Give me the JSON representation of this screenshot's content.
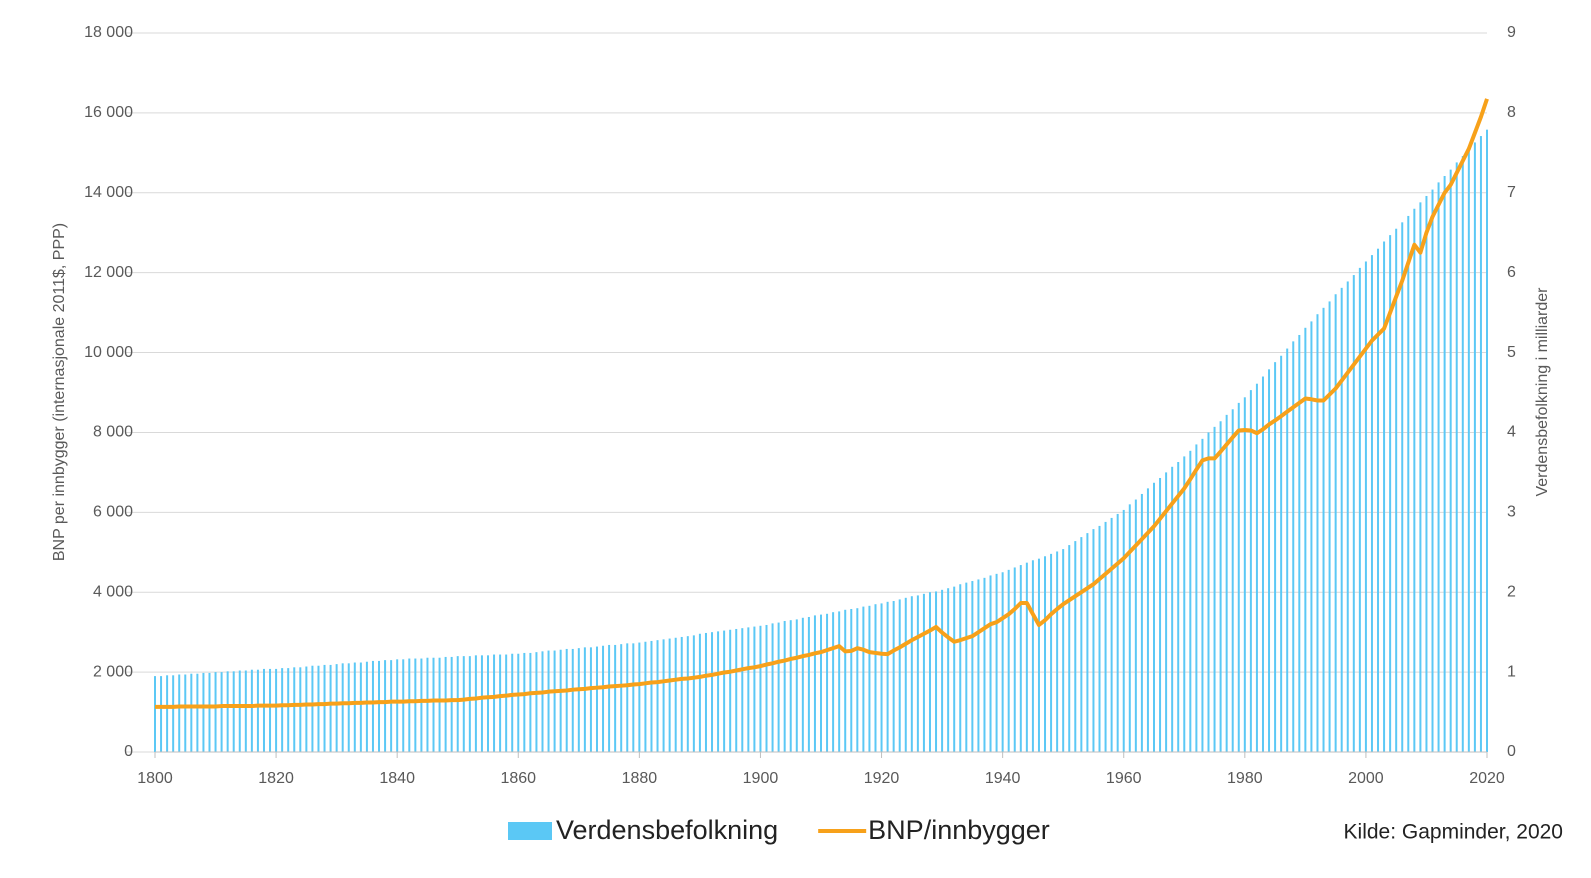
{
  "chart_data": {
    "type": "bar-line",
    "y_label": "BNP per innbygger (internasjonale 2011$, PPP)",
    "y2_label": "Verdensbefolkning i milliarder",
    "source": "Kilde: Gapminder, 2020",
    "xlim": [
      1800,
      2020
    ],
    "xticks": [
      1800,
      1820,
      1840,
      1860,
      1880,
      1900,
      1920,
      1940,
      1960,
      1980,
      2000,
      2020
    ],
    "ylim": [
      0,
      18000
    ],
    "yticks": [
      0,
      {
        "value": 2000,
        "label": "2 000"
      },
      {
        "value": 4000,
        "label": "4 000"
      },
      {
        "value": 6000,
        "label": "6 000"
      },
      {
        "value": 8000,
        "label": "8 000"
      },
      {
        "value": 10000,
        "label": "10 000"
      },
      {
        "value": 12000,
        "label": "12 000"
      },
      {
        "value": 14000,
        "label": "14 000"
      },
      {
        "value": 16000,
        "label": "16 000"
      },
      {
        "value": 18000,
        "label": "18 000"
      }
    ],
    "y2lim": [
      0,
      9
    ],
    "y2ticks": [
      0,
      1,
      2,
      3,
      4,
      5,
      6,
      7,
      8,
      9
    ],
    "grid": true,
    "x": [
      1800,
      1801,
      1802,
      1803,
      1804,
      1805,
      1806,
      1807,
      1808,
      1809,
      1810,
      1811,
      1812,
      1813,
      1814,
      1815,
      1816,
      1817,
      1818,
      1819,
      1820,
      1821,
      1822,
      1823,
      1824,
      1825,
      1826,
      1827,
      1828,
      1829,
      1830,
      1831,
      1832,
      1833,
      1834,
      1835,
      1836,
      1837,
      1838,
      1839,
      1840,
      1841,
      1842,
      1843,
      1844,
      1845,
      1846,
      1847,
      1848,
      1849,
      1850,
      1851,
      1852,
      1853,
      1854,
      1855,
      1856,
      1857,
      1858,
      1859,
      1860,
      1861,
      1862,
      1863,
      1864,
      1865,
      1866,
      1867,
      1868,
      1869,
      1870,
      1871,
      1872,
      1873,
      1874,
      1875,
      1876,
      1877,
      1878,
      1879,
      1880,
      1881,
      1882,
      1883,
      1884,
      1885,
      1886,
      1887,
      1888,
      1889,
      1890,
      1891,
      1892,
      1893,
      1894,
      1895,
      1896,
      1897,
      1898,
      1899,
      1900,
      1901,
      1902,
      1903,
      1904,
      1905,
      1906,
      1907,
      1908,
      1909,
      1910,
      1911,
      1912,
      1913,
      1914,
      1915,
      1916,
      1917,
      1918,
      1919,
      1920,
      1921,
      1922,
      1923,
      1924,
      1925,
      1926,
      1927,
      1928,
      1929,
      1930,
      1931,
      1932,
      1933,
      1934,
      1935,
      1936,
      1937,
      1938,
      1939,
      1940,
      1941,
      1942,
      1943,
      1944,
      1945,
      1946,
      1947,
      1948,
      1949,
      1950,
      1951,
      1952,
      1953,
      1954,
      1955,
      1956,
      1957,
      1958,
      1959,
      1960,
      1961,
      1962,
      1963,
      1964,
      1965,
      1966,
      1967,
      1968,
      1969,
      1970,
      1971,
      1972,
      1973,
      1974,
      1975,
      1976,
      1977,
      1978,
      1979,
      1980,
      1981,
      1982,
      1983,
      1984,
      1985,
      1986,
      1987,
      1988,
      1989,
      1990,
      1991,
      1992,
      1993,
      1994,
      1995,
      1996,
      1997,
      1998,
      1999,
      2000,
      2001,
      2002,
      2003,
      2004,
      2005,
      2006,
      2007,
      2008,
      2009,
      2010,
      2011,
      2012,
      2013,
      2014,
      2015,
      2016,
      2017,
      2018,
      2019,
      2020
    ],
    "series": [
      {
        "name": "Verdensbefolkning",
        "type": "bar",
        "axis": "y2",
        "color": "#5bc8f5",
        "values": [
          0.95,
          0.95,
          0.96,
          0.96,
          0.97,
          0.97,
          0.98,
          0.98,
          0.99,
          0.99,
          1.0,
          1.0,
          1.01,
          1.01,
          1.02,
          1.02,
          1.03,
          1.03,
          1.04,
          1.04,
          1.04,
          1.05,
          1.05,
          1.06,
          1.06,
          1.07,
          1.08,
          1.08,
          1.09,
          1.09,
          1.1,
          1.11,
          1.11,
          1.12,
          1.12,
          1.13,
          1.14,
          1.14,
          1.15,
          1.15,
          1.16,
          1.16,
          1.17,
          1.17,
          1.17,
          1.18,
          1.18,
          1.18,
          1.19,
          1.19,
          1.2,
          1.2,
          1.2,
          1.21,
          1.21,
          1.21,
          1.22,
          1.22,
          1.22,
          1.23,
          1.23,
          1.24,
          1.24,
          1.25,
          1.26,
          1.27,
          1.27,
          1.28,
          1.29,
          1.29,
          1.3,
          1.31,
          1.31,
          1.32,
          1.33,
          1.34,
          1.34,
          1.35,
          1.36,
          1.36,
          1.37,
          1.38,
          1.39,
          1.4,
          1.41,
          1.42,
          1.43,
          1.44,
          1.45,
          1.46,
          1.48,
          1.49,
          1.5,
          1.51,
          1.52,
          1.53,
          1.54,
          1.55,
          1.56,
          1.57,
          1.58,
          1.59,
          1.61,
          1.62,
          1.64,
          1.65,
          1.66,
          1.68,
          1.69,
          1.71,
          1.72,
          1.73,
          1.75,
          1.76,
          1.78,
          1.79,
          1.8,
          1.82,
          1.83,
          1.85,
          1.86,
          1.88,
          1.89,
          1.91,
          1.93,
          1.95,
          1.96,
          1.98,
          2.0,
          2.01,
          2.03,
          2.05,
          2.07,
          2.1,
          2.12,
          2.14,
          2.16,
          2.18,
          2.21,
          2.23,
          2.25,
          2.28,
          2.31,
          2.34,
          2.37,
          2.4,
          2.42,
          2.45,
          2.48,
          2.51,
          2.54,
          2.59,
          2.64,
          2.69,
          2.74,
          2.79,
          2.83,
          2.88,
          2.93,
          2.98,
          3.03,
          3.1,
          3.16,
          3.23,
          3.3,
          3.37,
          3.43,
          3.5,
          3.57,
          3.63,
          3.7,
          3.77,
          3.85,
          3.92,
          4.0,
          4.07,
          4.14,
          4.22,
          4.29,
          4.37,
          4.44,
          4.53,
          4.61,
          4.7,
          4.79,
          4.88,
          4.96,
          5.05,
          5.14,
          5.22,
          5.31,
          5.39,
          5.48,
          5.56,
          5.64,
          5.73,
          5.81,
          5.89,
          5.97,
          6.06,
          6.14,
          6.22,
          6.3,
          6.39,
          6.47,
          6.55,
          6.63,
          6.71,
          6.8,
          6.88,
          6.96,
          7.04,
          7.13,
          7.21,
          7.29,
          7.38,
          7.46,
          7.54,
          7.63,
          7.71,
          7.79
        ]
      },
      {
        "name": "BNP/innbygger",
        "type": "line",
        "color": "#f7a11a",
        "values": [
          1130,
          1130,
          1130,
          1130,
          1140,
          1140,
          1140,
          1140,
          1140,
          1140,
          1140,
          1150,
          1150,
          1150,
          1150,
          1150,
          1150,
          1160,
          1160,
          1160,
          1160,
          1170,
          1170,
          1180,
          1180,
          1190,
          1190,
          1200,
          1200,
          1210,
          1210,
          1220,
          1220,
          1230,
          1230,
          1240,
          1240,
          1250,
          1250,
          1260,
          1260,
          1260,
          1270,
          1270,
          1280,
          1280,
          1290,
          1290,
          1290,
          1300,
          1300,
          1310,
          1330,
          1340,
          1360,
          1370,
          1380,
          1400,
          1410,
          1430,
          1440,
          1450,
          1470,
          1480,
          1490,
          1510,
          1520,
          1530,
          1540,
          1560,
          1570,
          1580,
          1600,
          1610,
          1620,
          1640,
          1650,
          1660,
          1670,
          1690,
          1700,
          1720,
          1740,
          1750,
          1770,
          1790,
          1810,
          1830,
          1840,
          1860,
          1880,
          1910,
          1930,
          1960,
          1990,
          2010,
          2040,
          2070,
          2100,
          2120,
          2150,
          2190,
          2220,
          2260,
          2290,
          2330,
          2360,
          2400,
          2430,
          2470,
          2500,
          2550,
          2600,
          2650,
          2520,
          2530,
          2600,
          2560,
          2500,
          2480,
          2460,
          2450,
          2540,
          2620,
          2710,
          2800,
          2880,
          2960,
          3040,
          3130,
          2990,
          2870,
          2760,
          2800,
          2850,
          2900,
          3000,
          3100,
          3200,
          3250,
          3350,
          3450,
          3580,
          3730,
          3730,
          3450,
          3180,
          3300,
          3450,
          3580,
          3700,
          3800,
          3900,
          4000,
          4100,
          4200,
          4330,
          4460,
          4590,
          4720,
          4850,
          5010,
          5170,
          5330,
          5490,
          5650,
          5840,
          6030,
          6220,
          6410,
          6600,
          6830,
          7070,
          7300,
          7350,
          7350,
          7520,
          7700,
          7880,
          8050,
          8060,
          8050,
          7980,
          8080,
          8200,
          8300,
          8410,
          8520,
          8630,
          8740,
          8850,
          8830,
          8800,
          8800,
          8950,
          9100,
          9300,
          9500,
          9700,
          9900,
          10100,
          10300,
          10450,
          10600,
          11000,
          11400,
          11800,
          12250,
          12700,
          12500,
          13000,
          13400,
          13700,
          14000,
          14200,
          14500,
          14800,
          15100,
          15500,
          15900,
          16350
        ]
      }
    ]
  }
}
